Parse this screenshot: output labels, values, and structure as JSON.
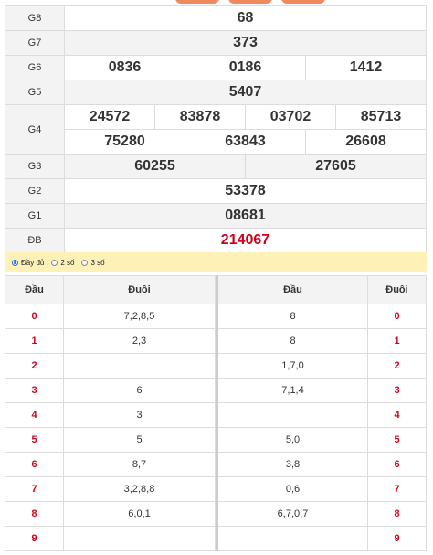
{
  "prizes": [
    {
      "label": "G8",
      "values": [
        "68"
      ]
    },
    {
      "label": "G7",
      "values": [
        "373"
      ]
    },
    {
      "label": "G6",
      "values": [
        "0836",
        "0186",
        "1412"
      ]
    },
    {
      "label": "G5",
      "values": [
        "5407"
      ]
    },
    {
      "label": "G4",
      "rows": [
        [
          "24572",
          "83878",
          "03702",
          "85713"
        ],
        [
          "75280",
          "63843",
          "26608"
        ]
      ]
    },
    {
      "label": "G3",
      "values": [
        "60255",
        "27605"
      ]
    },
    {
      "label": "G2",
      "values": [
        "53378"
      ]
    },
    {
      "label": "G1",
      "values": [
        "08681"
      ]
    },
    {
      "label": "ĐB",
      "values": [
        "214067"
      ]
    }
  ],
  "options": {
    "full": "Đầy đủ",
    "two": "2 số",
    "three": "3 số",
    "selected": "full"
  },
  "loto_left": {
    "head_col": "Đầu",
    "tail_col": "Đuôi",
    "rows": [
      {
        "num": "0",
        "vals": "7,2,8,5"
      },
      {
        "num": "1",
        "vals": "2,3"
      },
      {
        "num": "2",
        "vals": ""
      },
      {
        "num": "3",
        "vals": "6"
      },
      {
        "num": "4",
        "vals": "3"
      },
      {
        "num": "5",
        "vals": "5"
      },
      {
        "num": "6",
        "vals": "8,7"
      },
      {
        "num": "7",
        "vals": "3,2,8,8"
      },
      {
        "num": "8",
        "vals": "6,0,1"
      },
      {
        "num": "9",
        "vals": ""
      }
    ]
  },
  "loto_right": {
    "head_col": "Đầu",
    "tail_col": "Đuôi",
    "rows": [
      {
        "vals": "8",
        "num": "0"
      },
      {
        "vals": "8",
        "num": "1"
      },
      {
        "vals": "1,7,0",
        "num": "2"
      },
      {
        "vals": "7,1,4",
        "num": "3"
      },
      {
        "vals": "",
        "num": "4"
      },
      {
        "vals": "5,0",
        "num": "5"
      },
      {
        "vals": "3,8",
        "num": "6"
      },
      {
        "vals": "0,6",
        "num": "7"
      },
      {
        "vals": "6,7,0,7",
        "num": "8"
      },
      {
        "vals": "",
        "num": "9"
      }
    ]
  },
  "colors": {
    "special": "#d0021b",
    "accent": "#f08a5d",
    "option_bar": "#fdf1b8"
  }
}
